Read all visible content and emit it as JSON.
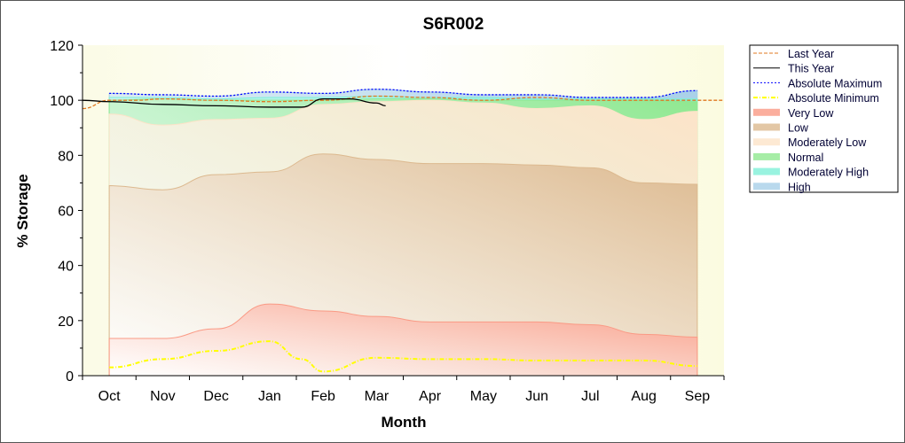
{
  "chart_data": {
    "type": "area",
    "title": "S6R002",
    "xlabel": "Month",
    "ylabel": "% Storage",
    "categories": [
      "Oct",
      "Nov",
      "Dec",
      "Jan",
      "Feb",
      "Mar",
      "Apr",
      "May",
      "Jun",
      "Jul",
      "Aug",
      "Sep"
    ],
    "ylim": [
      0,
      120
    ],
    "yticks": [
      0,
      20,
      40,
      60,
      80,
      100,
      120
    ],
    "legend_position": "right",
    "bands": [
      {
        "name": "Very Low",
        "color": "#fa9a85",
        "top": [
          13.5,
          13.5,
          17,
          26,
          23.5,
          21.5,
          19.5,
          19.5,
          19.5,
          18.5,
          15,
          14
        ]
      },
      {
        "name": "Low",
        "color": "#dcb98f",
        "top": [
          69,
          67.5,
          73,
          74,
          80.5,
          78.5,
          77,
          77,
          76.5,
          75.5,
          70,
          69.5
        ]
      },
      {
        "name": "Moderately Low",
        "color": "#fde3c8",
        "top": [
          95,
          91,
          93,
          93.5,
          98.5,
          99.5,
          100,
          99,
          97,
          98,
          93,
          96
        ]
      },
      {
        "name": "Normal",
        "color": "#90e890",
        "top": [
          100,
          100.5,
          100,
          100,
          100,
          100.5,
          100.5,
          100,
          100,
          100,
          100,
          99.5
        ]
      },
      {
        "name": "Moderately High",
        "color": "#80f0d8",
        "top": [
          101,
          101,
          100.5,
          101,
          101,
          101.5,
          101,
          101,
          100.5,
          100.5,
          100.5,
          100.5
        ]
      },
      {
        "name": "High",
        "color": "#a8d0e8",
        "top": [
          102.5,
          102,
          101.5,
          103,
          102.5,
          104,
          103,
          102,
          102,
          101,
          101,
          103.5
        ]
      }
    ],
    "series": [
      {
        "name": "Last Year",
        "color": "#e07820",
        "style": "dashed",
        "x": [
          -0.5,
          0,
          0.5,
          1,
          2,
          3,
          4,
          5,
          6,
          7,
          8,
          9,
          10,
          11,
          11.5
        ],
        "values": [
          97,
          100,
          100,
          100.5,
          100,
          99.5,
          100,
          101.5,
          101,
          100,
          101,
          100,
          100,
          100,
          100
        ]
      },
      {
        "name": "This Year",
        "color": "#000000",
        "style": "solid",
        "x": [
          -0.5,
          0,
          1,
          2,
          3,
          3.6,
          4,
          4.5,
          5,
          5.17
        ],
        "values": [
          100,
          99.5,
          98.5,
          98,
          97.5,
          97.5,
          100.5,
          100.5,
          99,
          98
        ]
      },
      {
        "name": "Absolute Maximum",
        "color": "#0000ff",
        "style": "dotted",
        "x": [
          0,
          1,
          2,
          3,
          4,
          5,
          6,
          7,
          8,
          9,
          10,
          11
        ],
        "values": [
          102.5,
          102,
          101.5,
          103,
          102.5,
          104,
          103,
          102,
          102,
          101,
          101,
          103.5
        ]
      },
      {
        "name": "Absolute Minimum",
        "color": "#ffff00",
        "style": "dashdot",
        "x": [
          0,
          1,
          2,
          3,
          3.6,
          4,
          5,
          6,
          7,
          8,
          9,
          10,
          11
        ],
        "values": [
          3,
          6,
          9,
          12.5,
          6,
          1.5,
          6.5,
          6,
          6,
          5.5,
          5.5,
          5.5,
          3.5
        ]
      }
    ]
  }
}
